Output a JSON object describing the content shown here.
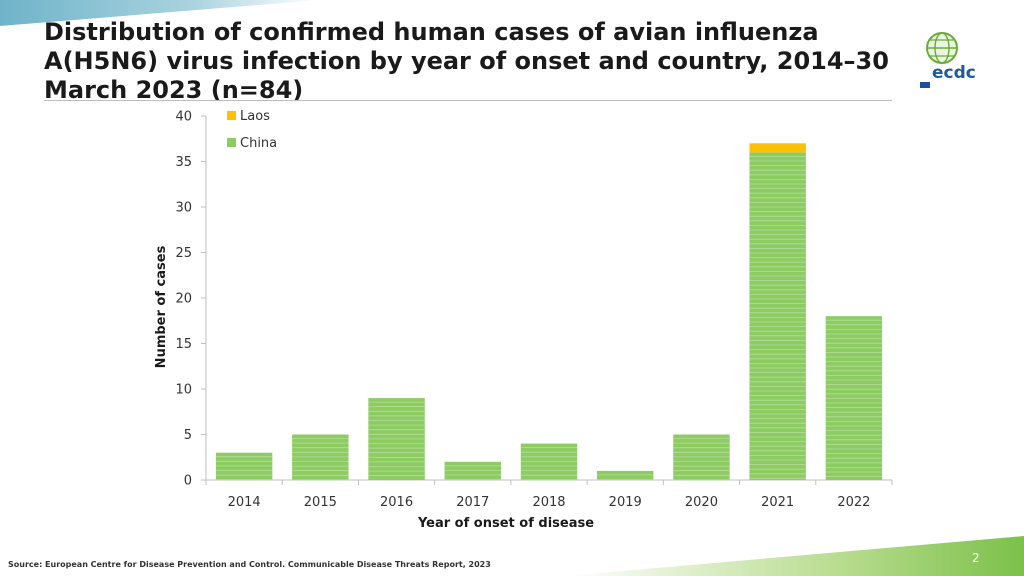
{
  "title": "Distribution of confirmed human cases of avian influenza A(H5N6) virus infection by year of onset and country, 2014–30 March 2023 (n=84)",
  "source": "Source: European Centre for Disease Prevention and Control. Communicable Disease Threats Report, 2023",
  "page_number": "2",
  "logo": {
    "text": "ecdc",
    "icon": "globe-icon"
  },
  "colors": {
    "china": "#8dcb63",
    "laos": "#ffc000",
    "axis": "#bfbfbf"
  },
  "chart_data": {
    "type": "bar",
    "stacked": true,
    "categories": [
      "2014",
      "2015",
      "2016",
      "2017",
      "2018",
      "2019",
      "2020",
      "2021",
      "2022"
    ],
    "series": [
      {
        "name": "China",
        "values": [
          3,
          5,
          9,
          2,
          4,
          1,
          5,
          36,
          18
        ]
      },
      {
        "name": "Laos",
        "values": [
          0,
          0,
          0,
          0,
          0,
          0,
          0,
          1,
          0
        ]
      }
    ],
    "xlabel": "Year of onset of disease",
    "ylabel": "Number of cases",
    "ylim": [
      0,
      40
    ],
    "yticks": [
      "0",
      "5",
      "10",
      "15",
      "20",
      "25",
      "30",
      "35",
      "40"
    ],
    "grid": false,
    "legend": "top-left"
  }
}
